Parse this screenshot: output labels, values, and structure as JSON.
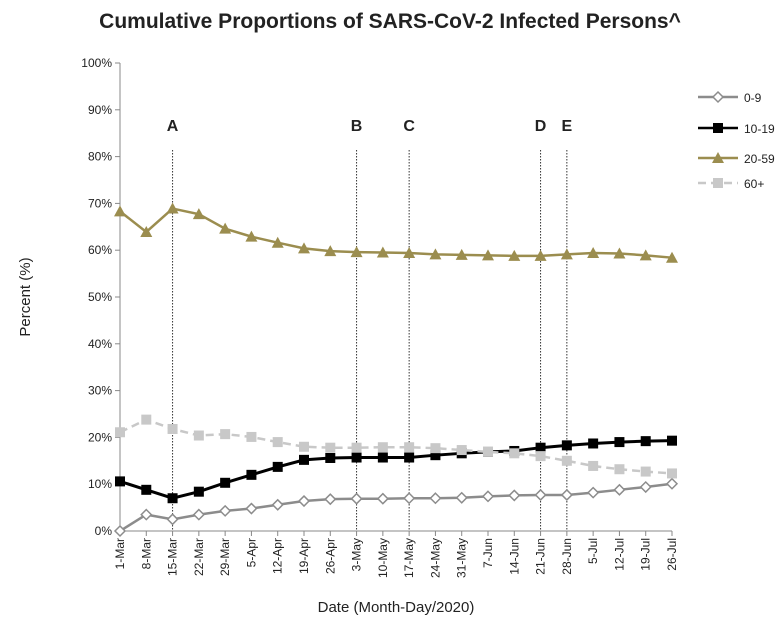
{
  "chart_data": {
    "type": "line",
    "title": "Cumulative Proportions of SARS-CoV-2 Infected Persons^",
    "x_label": "Date (Month-Day/2020)",
    "y_label": "Percent (%)",
    "categories": [
      "1-Mar",
      "8-Mar",
      "15-Mar",
      "22-Mar",
      "29-Mar",
      "5-Apr",
      "12-Apr",
      "19-Apr",
      "26-Apr",
      "3-May",
      "10-May",
      "17-May",
      "24-May",
      "31-May",
      "7-Jun",
      "14-Jun",
      "21-Jun",
      "28-Jun",
      "5-Jul",
      "12-Jul",
      "19-Jul",
      "26-Jul"
    ],
    "series": [
      {
        "name": "0-9",
        "color": "#8c8c8c",
        "marker": "diamond",
        "dashed": false,
        "values": [
          0,
          3.5,
          2.5,
          3.5,
          4.3,
          4.8,
          5.6,
          6.4,
          6.8,
          6.9,
          6.9,
          7.0,
          7.0,
          7.1,
          7.4,
          7.6,
          7.7,
          7.7,
          8.2,
          8.8,
          9.4,
          10.1
        ]
      },
      {
        "name": "10-19",
        "color": "#000000",
        "marker": "square",
        "dashed": false,
        "values": [
          10.6,
          8.8,
          7.0,
          8.4,
          10.3,
          12.0,
          13.7,
          15.2,
          15.6,
          15.7,
          15.7,
          15.7,
          16.2,
          16.6,
          16.9,
          17.1,
          17.8,
          18.3,
          18.7,
          19.0,
          19.2,
          19.3
        ]
      },
      {
        "name": "20-59",
        "color": "#9b8d4f",
        "marker": "triangle",
        "dashed": false,
        "values": [
          68.3,
          63.9,
          68.9,
          67.7,
          64.6,
          62.9,
          61.6,
          60.4,
          59.8,
          59.6,
          59.5,
          59.4,
          59.1,
          59.0,
          58.9,
          58.8,
          58.8,
          59.1,
          59.4,
          59.3,
          58.9,
          58.4
        ]
      },
      {
        "name": "60+",
        "color": "#c8c8c8",
        "marker": "square",
        "dashed": true,
        "values": [
          21.1,
          23.8,
          21.8,
          20.4,
          20.7,
          20.1,
          19.0,
          18.0,
          17.8,
          17.8,
          17.9,
          17.9,
          17.7,
          17.3,
          16.9,
          16.6,
          16.0,
          15.0,
          13.9,
          13.2,
          12.7,
          12.3
        ]
      }
    ],
    "annotations": [
      {
        "label": "A",
        "at": "15-Mar"
      },
      {
        "label": "B",
        "at": "3-May"
      },
      {
        "label": "C",
        "at": "17-May"
      },
      {
        "label": "D",
        "at": "21-Jun"
      },
      {
        "label": "E",
        "at": "28-Jun"
      }
    ],
    "ylim": [
      0,
      100
    ],
    "yticks": [
      {
        "value": 0,
        "label": "0%"
      },
      {
        "value": 10,
        "label": "10%"
      },
      {
        "value": 20,
        "label": "20%"
      },
      {
        "value": 30,
        "label": "30%"
      },
      {
        "value": 40,
        "label": "40%"
      },
      {
        "value": 50,
        "label": "50%"
      },
      {
        "value": 60,
        "label": "60%"
      },
      {
        "value": 70,
        "label": "70%"
      },
      {
        "value": 80,
        "label": "80%"
      },
      {
        "value": 90,
        "label": "90%"
      },
      {
        "value": 100,
        "label": "100%"
      }
    ],
    "legend": "right"
  }
}
